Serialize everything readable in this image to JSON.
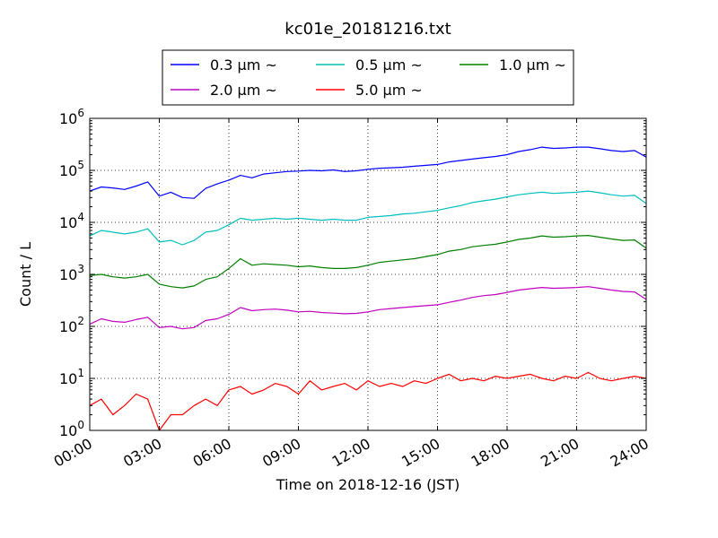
{
  "chart_data": {
    "type": "line",
    "title": "kc01e_20181216.txt",
    "xlabel": "Time on 2018-12-16 (JST)",
    "ylabel": "Count / L",
    "yscale": "log",
    "ylim": [
      1,
      1000000
    ],
    "xlim": [
      "00:00",
      "24:00"
    ],
    "x_ticks": [
      "00:00",
      "03:00",
      "06:00",
      "09:00",
      "12:00",
      "15:00",
      "18:00",
      "21:00",
      "24:00"
    ],
    "y_ticks": [
      {
        "base": "10",
        "exp": "0"
      },
      {
        "base": "10",
        "exp": "1"
      },
      {
        "base": "10",
        "exp": "2"
      },
      {
        "base": "10",
        "exp": "3"
      },
      {
        "base": "10",
        "exp": "4"
      },
      {
        "base": "10",
        "exp": "5"
      },
      {
        "base": "10",
        "exp": "6"
      }
    ],
    "grid": true,
    "legend_position": "top",
    "x": [
      "00:00",
      "00:30",
      "01:00",
      "01:30",
      "02:00",
      "02:30",
      "03:00",
      "03:30",
      "04:00",
      "04:30",
      "05:00",
      "05:30",
      "06:00",
      "06:30",
      "07:00",
      "07:30",
      "08:00",
      "08:30",
      "09:00",
      "09:30",
      "10:00",
      "10:30",
      "11:00",
      "11:30",
      "12:00",
      "12:30",
      "13:00",
      "13:30",
      "14:00",
      "14:30",
      "15:00",
      "15:30",
      "16:00",
      "16:30",
      "17:00",
      "17:30",
      "18:00",
      "18:30",
      "19:00",
      "19:30",
      "20:00",
      "20:30",
      "21:00",
      "21:30",
      "22:00",
      "22:30",
      "23:00",
      "23:30",
      "24:00"
    ],
    "series": [
      {
        "name": "0.3 μm ~",
        "color": "#0000ff",
        "values": [
          40000,
          48000,
          46000,
          43000,
          50000,
          60000,
          32000,
          38000,
          30000,
          29000,
          45000,
          55000,
          65000,
          80000,
          72000,
          85000,
          90000,
          95000,
          97000,
          100000,
          98000,
          102000,
          95000,
          98000,
          105000,
          110000,
          112000,
          115000,
          120000,
          125000,
          130000,
          145000,
          155000,
          165000,
          175000,
          185000,
          200000,
          230000,
          250000,
          280000,
          265000,
          270000,
          280000,
          280000,
          260000,
          240000,
          230000,
          240000,
          180000
        ]
      },
      {
        "name": "0.5 μm ~",
        "color": "#00bfbf",
        "values": [
          5500,
          7000,
          6500,
          6000,
          6500,
          7500,
          4200,
          4500,
          3700,
          4500,
          6500,
          7000,
          9000,
          12000,
          11000,
          11500,
          12000,
          11500,
          12000,
          11500,
          11000,
          11500,
          11000,
          11000,
          12500,
          13000,
          13500,
          14500,
          15000,
          16000,
          17000,
          19000,
          21000,
          24000,
          26000,
          28000,
          31000,
          34000,
          36000,
          38000,
          36000,
          37000,
          38000,
          40000,
          37000,
          34000,
          32000,
          33000,
          23000
        ]
      },
      {
        "name": "1.0 μm ~",
        "color": "#008000",
        "values": [
          950,
          1000,
          900,
          850,
          900,
          1000,
          650,
          580,
          550,
          600,
          800,
          900,
          1300,
          2000,
          1500,
          1600,
          1550,
          1500,
          1400,
          1450,
          1350,
          1300,
          1300,
          1350,
          1500,
          1700,
          1800,
          1900,
          2000,
          2200,
          2400,
          2800,
          3000,
          3400,
          3600,
          3800,
          4200,
          4700,
          5000,
          5500,
          5200,
          5300,
          5500,
          5600,
          5200,
          4800,
          4500,
          4600,
          3200
        ]
      },
      {
        "name": "2.0 μm ~",
        "color": "#bf00bf",
        "values": [
          110,
          140,
          125,
          120,
          135,
          150,
          95,
          100,
          90,
          95,
          130,
          140,
          170,
          230,
          200,
          210,
          215,
          205,
          190,
          195,
          185,
          180,
          175,
          178,
          190,
          210,
          220,
          230,
          240,
          250,
          260,
          290,
          320,
          360,
          390,
          410,
          450,
          500,
          530,
          560,
          540,
          550,
          560,
          580,
          540,
          500,
          470,
          460,
          330
        ]
      },
      {
        "name": "5.0 μm ~",
        "color": "#ff0000",
        "values": [
          3,
          4,
          2,
          3,
          5,
          4,
          1,
          2,
          2,
          3,
          4,
          3,
          6,
          7,
          5,
          6,
          8,
          7,
          5,
          9,
          6,
          7,
          8,
          6,
          9,
          7,
          8,
          7,
          9,
          8,
          10,
          12,
          9,
          10,
          9,
          11,
          10,
          11,
          12,
          10,
          9,
          11,
          10,
          13,
          10,
          9,
          10,
          11,
          10
        ]
      }
    ]
  }
}
